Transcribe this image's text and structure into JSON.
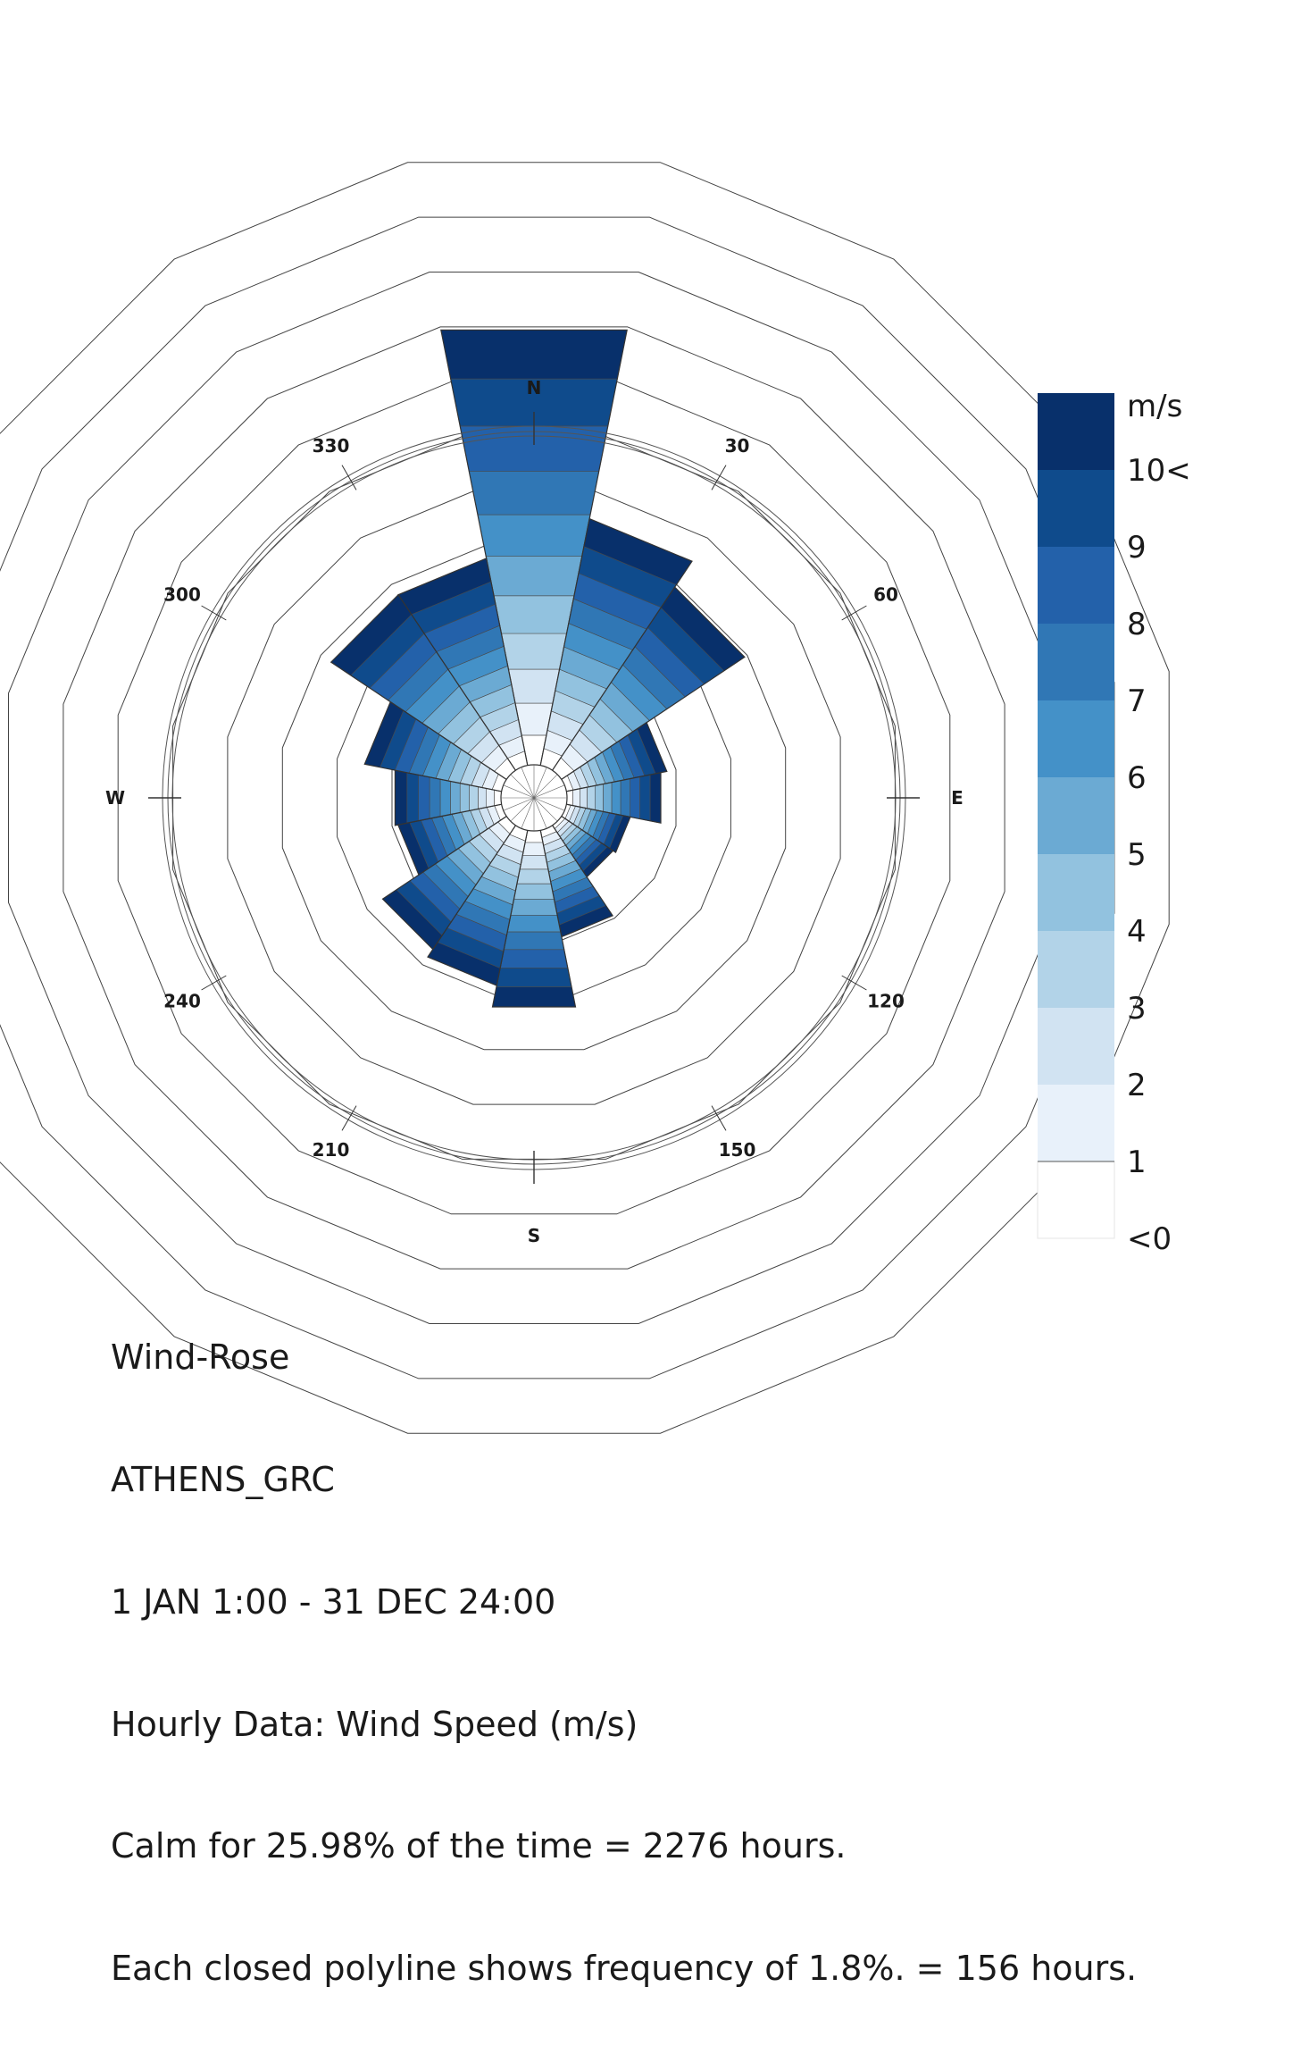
{
  "chart_data": {
    "type": "wind-rose",
    "direction_labels": {
      "north": "N",
      "east": "E",
      "south": "S",
      "west": "W",
      "angles": [
        "30",
        "60",
        "120",
        "150",
        "210",
        "240",
        "300",
        "330"
      ]
    },
    "sectors": 16,
    "sector_directions_deg": [
      0,
      22.5,
      45,
      67.5,
      90,
      112.5,
      135,
      157.5,
      180,
      202.5,
      225,
      247.5,
      270,
      292.5,
      315,
      337.5
    ],
    "sector_frequency_pct": [
      14.3,
      8.1,
      7.1,
      3.3,
      3.1,
      2.1,
      2.0,
      3.5,
      5.8,
      5.1,
      4.8,
      3.4,
      3.5,
      4.5,
      6.8,
      6.8
    ],
    "calm_radius_pct": 1.3,
    "polyline_step_pct": 1.8,
    "polyline_count": 11,
    "legend": {
      "unit": "m/s",
      "labels": [
        "10<",
        "9",
        "8",
        "7",
        "6",
        "5",
        "4",
        "3",
        "2",
        "1",
        "<0"
      ],
      "colors": [
        "#08306b",
        "#0f4b8c",
        "#2361aa",
        "#3077b5",
        "#4491c8",
        "#6baad3",
        "#92c2df",
        "#b2d3e8",
        "#d1e3f2",
        "#e8f1fa",
        "#ffffff"
      ]
    },
    "speed_bin_colors": [
      "#ffffff",
      "#e8f1fa",
      "#d1e3f2",
      "#b2d3e8",
      "#92c2df",
      "#6baad3",
      "#4491c8",
      "#3077b5",
      "#2361aa",
      "#0f4b8c",
      "#08306b"
    ]
  },
  "info": {
    "line1": "Wind-Rose",
    "line2": "ATHENS_GRC",
    "line3": "1 JAN 1:00 - 31 DEC 24:00",
    "line4": "Hourly Data: Wind Speed (m/s)",
    "line5": "Calm for 25.98% of the time = 2276 hours.",
    "line6": "Each closed polyline shows frequency of 1.8%. = 156 hours."
  }
}
